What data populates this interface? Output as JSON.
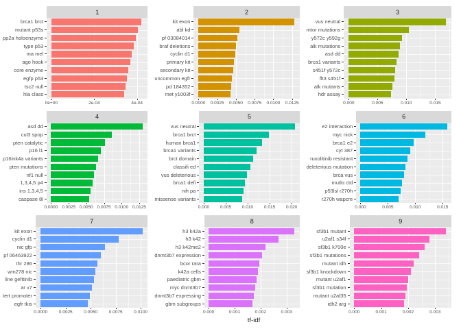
{
  "axis_title": "tf-idf",
  "chart_data": [
    {
      "type": "bar",
      "orientation": "horizontal",
      "title": "1",
      "color": "#F8766D",
      "categories": [
        "brca1 brct",
        "mutant p53s",
        "pp2a holoenzyme",
        "type p53",
        "ma mel",
        "ago hook",
        "core enzyme",
        "egfp p53",
        "tsc2 null",
        "hla class"
      ],
      "values": [
        0.00042,
        0.000405,
        0.000395,
        0.000385,
        0.000375,
        0.000368,
        0.00036,
        0.000353,
        0.000346,
        0.00034
      ],
      "xmax": 0.00045,
      "x_ticks": {
        "values": [
          0,
          0.0002,
          0.0004
        ],
        "labels": [
          "0e+00",
          "2e-04",
          "4e-04"
        ]
      }
    },
    {
      "type": "bar",
      "orientation": "horizontal",
      "title": "2",
      "color": "#D39200",
      "categories": [
        "kit exon",
        "abl kd",
        "pf 03084014",
        "braf deletions",
        "cyclin d1",
        "primary kit",
        "secondary kit",
        "uncommon egfr",
        "pd 184352",
        "met y1003f"
      ],
      "values": [
        0.0128,
        0.0055,
        0.0052,
        0.005,
        0.0049,
        0.0047,
        0.0046,
        0.0045,
        0.0044,
        0.0043
      ],
      "xmax": 0.0135,
      "x_ticks": {
        "values": [
          0,
          0.0025,
          0.005,
          0.0075,
          0.01,
          0.0125
        ],
        "labels": [
          "0.0000",
          "0.0025",
          "0.0050",
          "0.0075",
          "0.0100",
          "0.0125"
        ]
      }
    },
    {
      "type": "bar",
      "orientation": "horizontal",
      "title": "3",
      "color": "#93AA00",
      "categories": [
        "vus neutral",
        "mtor mutations",
        "y572c y592g",
        "alk mutations",
        "asd dd",
        "brca1 variants",
        "s451f y572c",
        "flt3 s451f",
        "alk mutants",
        "hdr assay"
      ],
      "values": [
        0.0168,
        0.0104,
        0.0092,
        0.0089,
        0.0086,
        0.0083,
        0.0081,
        0.0079,
        0.0076,
        0.0073
      ],
      "xmax": 0.0178,
      "x_ticks": {
        "values": [
          0,
          0.005,
          0.01,
          0.015
        ],
        "labels": [
          "0.000",
          "0.005",
          "0.010",
          "0.015"
        ]
      }
    },
    {
      "type": "bar",
      "orientation": "horizontal",
      "title": "4",
      "color": "#00BA38",
      "categories": [
        "asd dd",
        "cul3 spop",
        "pten catalytic",
        "p16 l1",
        "p16ink4a variants",
        "pten mutations",
        "nf1 null",
        "1,3,4,5 p4",
        "ins 1,3,4,5",
        "caspase 8l"
      ],
      "values": [
        0.013,
        0.0086,
        0.0076,
        0.0071,
        0.0067,
        0.0064,
        0.0061,
        0.0059,
        0.0056,
        0.0054
      ],
      "xmax": 0.0137,
      "x_ticks": {
        "values": [
          0,
          0.0025,
          0.005,
          0.0075,
          0.01,
          0.0125
        ],
        "labels": [
          "0.0000",
          "0.0025",
          "0.0050",
          "0.0075",
          "0.0100",
          "0.0125"
        ]
      }
    },
    {
      "type": "bar",
      "orientation": "horizontal",
      "title": "5",
      "color": "#00C19F",
      "categories": [
        "vus neutral",
        "brca1 brct",
        "human brca1",
        "brca1 variants",
        "brct domain",
        "classifi ed",
        "vus deleterious",
        "brca1 defi",
        "nih pa",
        "missense variants"
      ],
      "values": [
        0.0208,
        0.0148,
        0.0133,
        0.0121,
        0.0113,
        0.0106,
        0.0099,
        0.0094,
        0.009,
        0.0087
      ],
      "xmax": 0.0218,
      "x_ticks": {
        "values": [
          0,
          0.005,
          0.01,
          0.015,
          0.02
        ],
        "labels": [
          "0.000",
          "0.005",
          "0.010",
          "0.015",
          "0.020"
        ]
      }
    },
    {
      "type": "bar",
      "orientation": "horizontal",
      "title": "6",
      "color": "#00B9E3",
      "categories": [
        "e2 interaction",
        "myc nick",
        "brca1 e2",
        "cyt 387",
        "ruxolitinib resistant",
        "deleterious mutation",
        "brca vus",
        "mutlα ctd",
        "p53lsl r270h",
        "r270h wapcre"
      ],
      "values": [
        0.0158,
        0.0118,
        0.0097,
        0.0091,
        0.0086,
        0.0082,
        0.0079,
        0.0076,
        0.0073,
        0.007
      ],
      "xmax": 0.0166,
      "x_ticks": {
        "values": [
          0,
          0.005,
          0.01,
          0.015
        ],
        "labels": [
          "0.000",
          "0.005",
          "0.010",
          "0.015"
        ]
      }
    },
    {
      "type": "bar",
      "orientation": "horizontal",
      "title": "7",
      "color": "#619CFF",
      "categories": [
        "kit exon",
        "cyclin d1",
        "nic gfp",
        "pf 06463922",
        "thr 286",
        "wm278 nic",
        "line gefitinib",
        "ar v7",
        "tert promoter",
        "egfr tkis"
      ],
      "values": [
        0.0102,
        0.0078,
        0.0064,
        0.006,
        0.0057,
        0.0055,
        0.0053,
        0.0051,
        0.0049,
        0.0047
      ],
      "xmax": 0.0107,
      "x_ticks": {
        "values": [
          0,
          0.0025,
          0.005,
          0.0075,
          0.01
        ],
        "labels": [
          "0.0000",
          "0.0025",
          "0.0050",
          "0.0075",
          "0.0100"
        ]
      }
    },
    {
      "type": "bar",
      "orientation": "horizontal",
      "title": "8",
      "color": "#DB72FB",
      "categories": [
        "h3 k42a",
        "h3 k42",
        "h3 k42me2",
        "dnmt3b7 expression",
        "bcor rara",
        "k42a cells",
        "paediatric gbm",
        "myc dnmt3b7",
        "dnmt3b7 expressing",
        "gbm subgroups"
      ],
      "values": [
        0.0033,
        0.0027,
        0.0022,
        0.00205,
        0.00195,
        0.0019,
        0.00185,
        0.0018,
        0.00175,
        0.0017
      ],
      "xmax": 0.0035,
      "x_ticks": {
        "values": [
          0,
          0.001,
          0.002,
          0.003
        ],
        "labels": [
          "0.000",
          "0.001",
          "0.002",
          "0.003"
        ]
      }
    },
    {
      "type": "bar",
      "orientation": "horizontal",
      "title": "9",
      "color": "#FF61C3",
      "categories": [
        "sf3b1 mutant",
        "u2af1 s34f",
        "sf3b1 k700e",
        "sf3b1 mutations",
        "mutant idh",
        "sf3b1 knockdown",
        "mutant u2af1",
        "sf3b1 mutation",
        "mutant u2af35",
        "idh2 arg"
      ],
      "values": [
        0.0034,
        0.0028,
        0.0026,
        0.0024,
        0.0022,
        0.0021,
        0.002,
        0.00195,
        0.0019,
        0.00185
      ],
      "xmax": 0.0036,
      "x_ticks": {
        "values": [
          0,
          0.001,
          0.002,
          0.003
        ],
        "labels": [
          "0.000",
          "0.001",
          "0.002",
          "0.003"
        ]
      }
    }
  ]
}
